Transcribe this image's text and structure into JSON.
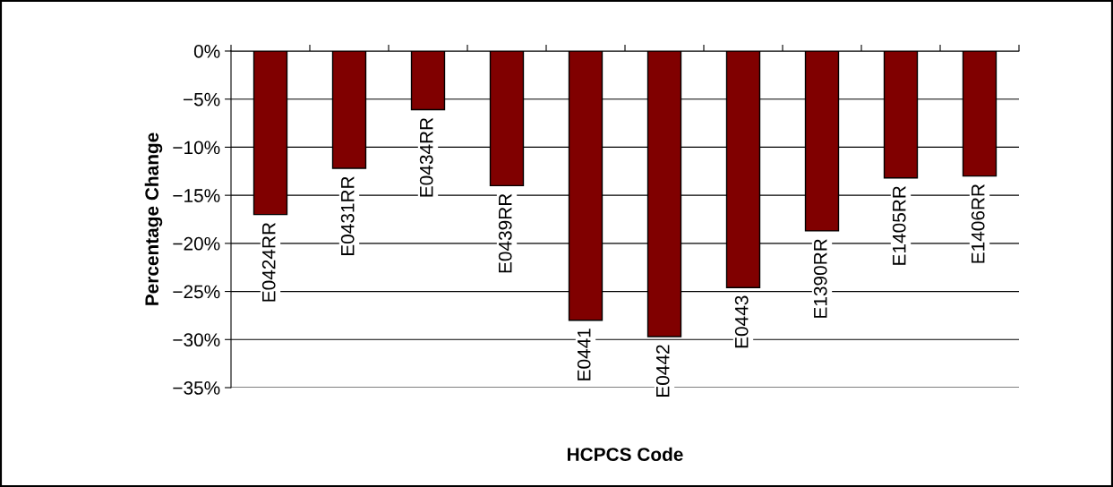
{
  "chart_data": {
    "type": "bar",
    "xlabel": "HCPCS Code",
    "ylabel": "Percentage Change",
    "categories": [
      "E0424RR",
      "E0431RR",
      "E0434RR",
      "E0439RR",
      "E0441",
      "E0442",
      "E0443",
      "E1390RR",
      "E1405RR",
      "E1406RR"
    ],
    "values": [
      -17,
      -12.2,
      -6.1,
      -14,
      -28,
      -29.7,
      -24.6,
      -18.7,
      -13.2,
      -13
    ],
    "color": "#800000",
    "ylim": [
      -35,
      0
    ],
    "yticks": [
      {
        "value": 0,
        "label": "0%"
      },
      {
        "value": -5,
        "label": "−5%"
      },
      {
        "value": -10,
        "label": "−10%"
      },
      {
        "value": -15,
        "label": "−15%"
      },
      {
        "value": -20,
        "label": "−20%"
      },
      {
        "value": -25,
        "label": "−25%"
      },
      {
        "value": -30,
        "label": "−30%"
      },
      {
        "value": -35,
        "label": "−35%"
      }
    ],
    "grid": "y"
  }
}
